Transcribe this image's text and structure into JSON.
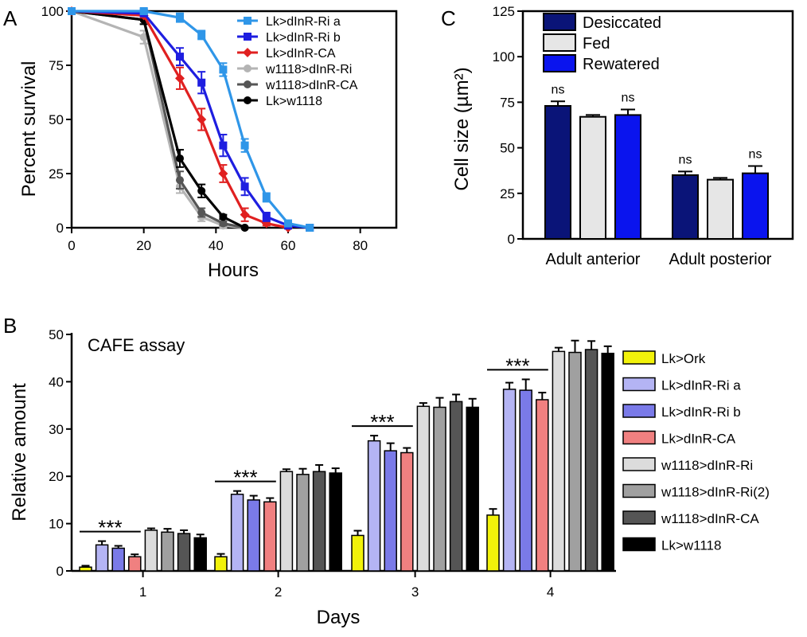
{
  "panels": {
    "a": {
      "letter": "A"
    },
    "b": {
      "letter": "B"
    },
    "c": {
      "letter": "C"
    }
  },
  "chart_data": [
    {
      "id": "A",
      "type": "line",
      "xlabel": "Hours",
      "ylabel": "Percent survival",
      "xlim": [
        0,
        90
      ],
      "ylim": [
        0,
        100
      ],
      "xticks": [
        "0",
        "20",
        "40",
        "60",
        "80"
      ],
      "yticks": [
        "0",
        "25",
        "50",
        "75",
        "100"
      ],
      "grid": false,
      "legend_position": "top-right",
      "series": [
        {
          "name": "Lk>dInR-Ri a",
          "color": "#2f96e8",
          "marker": "square",
          "x": [
            0,
            20,
            30,
            36,
            42,
            48,
            54,
            60,
            66
          ],
          "y": [
            100,
            100,
            97,
            89,
            73,
            38,
            14,
            2,
            0
          ],
          "err": [
            0,
            1,
            2,
            2,
            3,
            3,
            2,
            1,
            0
          ]
        },
        {
          "name": "Lk>dInR-Ri b",
          "color": "#1e1ee0",
          "marker": "square",
          "x": [
            0,
            20,
            30,
            36,
            42,
            48,
            54,
            60,
            66
          ],
          "y": [
            100,
            99,
            79,
            67,
            38,
            19,
            5,
            1,
            0
          ],
          "err": [
            0,
            1,
            4,
            5,
            5,
            4,
            2,
            1,
            0
          ]
        },
        {
          "name": "Lk>dInR-CA",
          "color": "#e02020",
          "marker": "diamond",
          "x": [
            0,
            20,
            30,
            36,
            42,
            48,
            54,
            60
          ],
          "y": [
            100,
            98,
            69,
            50,
            25,
            6,
            2,
            0
          ],
          "err": [
            0,
            1,
            5,
            5,
            4,
            3,
            1,
            0
          ]
        },
        {
          "name": "w1118>dInR-Ri",
          "color": "#b4b4b4",
          "marker": "circle",
          "x": [
            0,
            20,
            30,
            36,
            42,
            48
          ],
          "y": [
            100,
            88,
            19,
            5,
            1,
            0
          ],
          "err": [
            0,
            3,
            3,
            2,
            1,
            0
          ]
        },
        {
          "name": "w1118>dInR-CA",
          "color": "#555555",
          "marker": "circle",
          "x": [
            0,
            20,
            30,
            36,
            42,
            48
          ],
          "y": [
            100,
            96,
            22,
            7,
            2,
            0
          ],
          "err": [
            0,
            2,
            4,
            2,
            1,
            0
          ]
        },
        {
          "name": "Lk>w1118",
          "color": "#000000",
          "marker": "circle",
          "x": [
            0,
            20,
            30,
            36,
            42,
            48
          ],
          "y": [
            100,
            96,
            32,
            17,
            5,
            0
          ],
          "err": [
            0,
            2,
            4,
            3,
            1,
            0
          ]
        }
      ]
    },
    {
      "id": "B",
      "type": "bar",
      "title": "CAFE assay",
      "xlabel": "Days",
      "ylabel": "Relative amount",
      "ylim": [
        0,
        50
      ],
      "yticks": [
        "0",
        "10",
        "20",
        "30",
        "40",
        "50"
      ],
      "categories": [
        "1",
        "2",
        "3",
        "4"
      ],
      "significance": "***",
      "grid": false,
      "legend_position": "right",
      "series": [
        {
          "name": "Lk>Ork",
          "color": "#f2f20a",
          "values": [
            0.8,
            3.0,
            7.5,
            11.8
          ],
          "err": [
            0.3,
            0.6,
            1.0,
            1.3
          ]
        },
        {
          "name": "Lk>dInR-Ri a",
          "color": "#b4b4f4",
          "values": [
            5.5,
            16.2,
            27.5,
            38.4
          ],
          "err": [
            0.8,
            0.7,
            1.1,
            1.4
          ]
        },
        {
          "name": "Lk>dInR-Ri b",
          "color": "#7a7ae8",
          "values": [
            4.8,
            15.0,
            25.4,
            38.2
          ],
          "err": [
            0.5,
            0.9,
            1.6,
            2.3
          ]
        },
        {
          "name": "Lk>dInR-CA",
          "color": "#f08080",
          "values": [
            3.0,
            14.6,
            25.0,
            36.2
          ],
          "err": [
            0.5,
            0.8,
            1.0,
            1.5
          ]
        },
        {
          "name": "w1118>dInR-Ri",
          "color": "#dcdcdc",
          "values": [
            8.6,
            21.0,
            34.8,
            46.4
          ],
          "err": [
            0.4,
            0.5,
            0.7,
            0.8
          ]
        },
        {
          "name": "w1118>dInR-Ri(2)",
          "color": "#a0a0a0",
          "values": [
            8.2,
            20.4,
            34.6,
            46.2
          ],
          "err": [
            0.7,
            1.2,
            2.0,
            2.5
          ]
        },
        {
          "name": "w1118>dInR-CA",
          "color": "#555555",
          "values": [
            7.9,
            21.0,
            35.8,
            46.8
          ],
          "err": [
            0.7,
            1.4,
            1.5,
            1.8
          ]
        },
        {
          "name": "Lk>w1118",
          "color": "#000000",
          "values": [
            7.0,
            20.7,
            34.6,
            46.0
          ],
          "err": [
            0.7,
            1.0,
            1.8,
            1.5
          ]
        }
      ]
    },
    {
      "id": "C",
      "type": "bar",
      "ylabel": "Cell size (µm²)",
      "ylim": [
        0,
        125
      ],
      "yticks": [
        "0",
        "25",
        "50",
        "75",
        "100",
        "125"
      ],
      "categories": [
        "Adult anterior",
        "Adult posterior"
      ],
      "grid": false,
      "legend_position": "top-left",
      "series": [
        {
          "name": "Desiccated",
          "color": "#0a1478",
          "values": [
            73,
            35
          ],
          "err": [
            2.5,
            2.0
          ],
          "labels": [
            "ns",
            "ns"
          ]
        },
        {
          "name": "Fed",
          "color": "#e6e6e6",
          "values": [
            67,
            32.5
          ],
          "err": [
            1.0,
            1.0
          ],
          "labels": [
            "",
            ""
          ]
        },
        {
          "name": "Rewatered",
          "color": "#0a14ee",
          "values": [
            68,
            36
          ],
          "err": [
            3.0,
            4.0
          ],
          "labels": [
            "ns",
            "ns"
          ]
        }
      ]
    }
  ]
}
